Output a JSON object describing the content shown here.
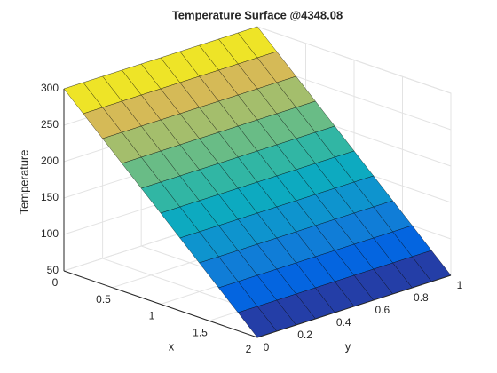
{
  "chart_data": {
    "type": "surface",
    "title": "Temperature Surface @4348.08",
    "xlabel": "x",
    "ylabel": "y",
    "zlabel": "Temperature",
    "x": [
      0,
      0.2,
      0.4,
      0.6,
      0.8,
      1,
      1.2,
      1.4,
      1.6,
      1.8,
      2
    ],
    "y": [
      0,
      0.1,
      0.2,
      0.3,
      0.4,
      0.5,
      0.6,
      0.7,
      0.8,
      0.9,
      1
    ],
    "z": [
      [
        300,
        300,
        300,
        300,
        300,
        300,
        300,
        300,
        300,
        300,
        300
      ],
      [
        275,
        275,
        275,
        275,
        275,
        275,
        275,
        275,
        275,
        275,
        275
      ],
      [
        250,
        250,
        250,
        250,
        250,
        250,
        250,
        250,
        250,
        250,
        250
      ],
      [
        225,
        225,
        225,
        225,
        225,
        225,
        225,
        225,
        225,
        225,
        225
      ],
      [
        200,
        200,
        200,
        200,
        200,
        200,
        200,
        200,
        200,
        200,
        200
      ],
      [
        175,
        175,
        175,
        175,
        175,
        175,
        175,
        175,
        175,
        175,
        175
      ],
      [
        150,
        150,
        150,
        150,
        150,
        150,
        150,
        150,
        150,
        150,
        150
      ],
      [
        125,
        125,
        125,
        125,
        125,
        125,
        125,
        125,
        125,
        125,
        125
      ],
      [
        100,
        100,
        100,
        100,
        100,
        100,
        100,
        100,
        100,
        100,
        100
      ],
      [
        75,
        75,
        75,
        75,
        75,
        75,
        75,
        75,
        75,
        75,
        75
      ],
      [
        50,
        50,
        50,
        50,
        50,
        50,
        50,
        50,
        50,
        50,
        50
      ]
    ],
    "xlim": [
      0,
      2
    ],
    "xticks": [
      0,
      0.5,
      1,
      1.5,
      2
    ],
    "ylim": [
      0,
      1
    ],
    "yticks": [
      0,
      0.2,
      0.4,
      0.6,
      0.8,
      1
    ],
    "zlim": [
      50,
      300
    ],
    "zticks": [
      50,
      100,
      150,
      200,
      250,
      300
    ],
    "colormap": "parula",
    "grid": true
  }
}
